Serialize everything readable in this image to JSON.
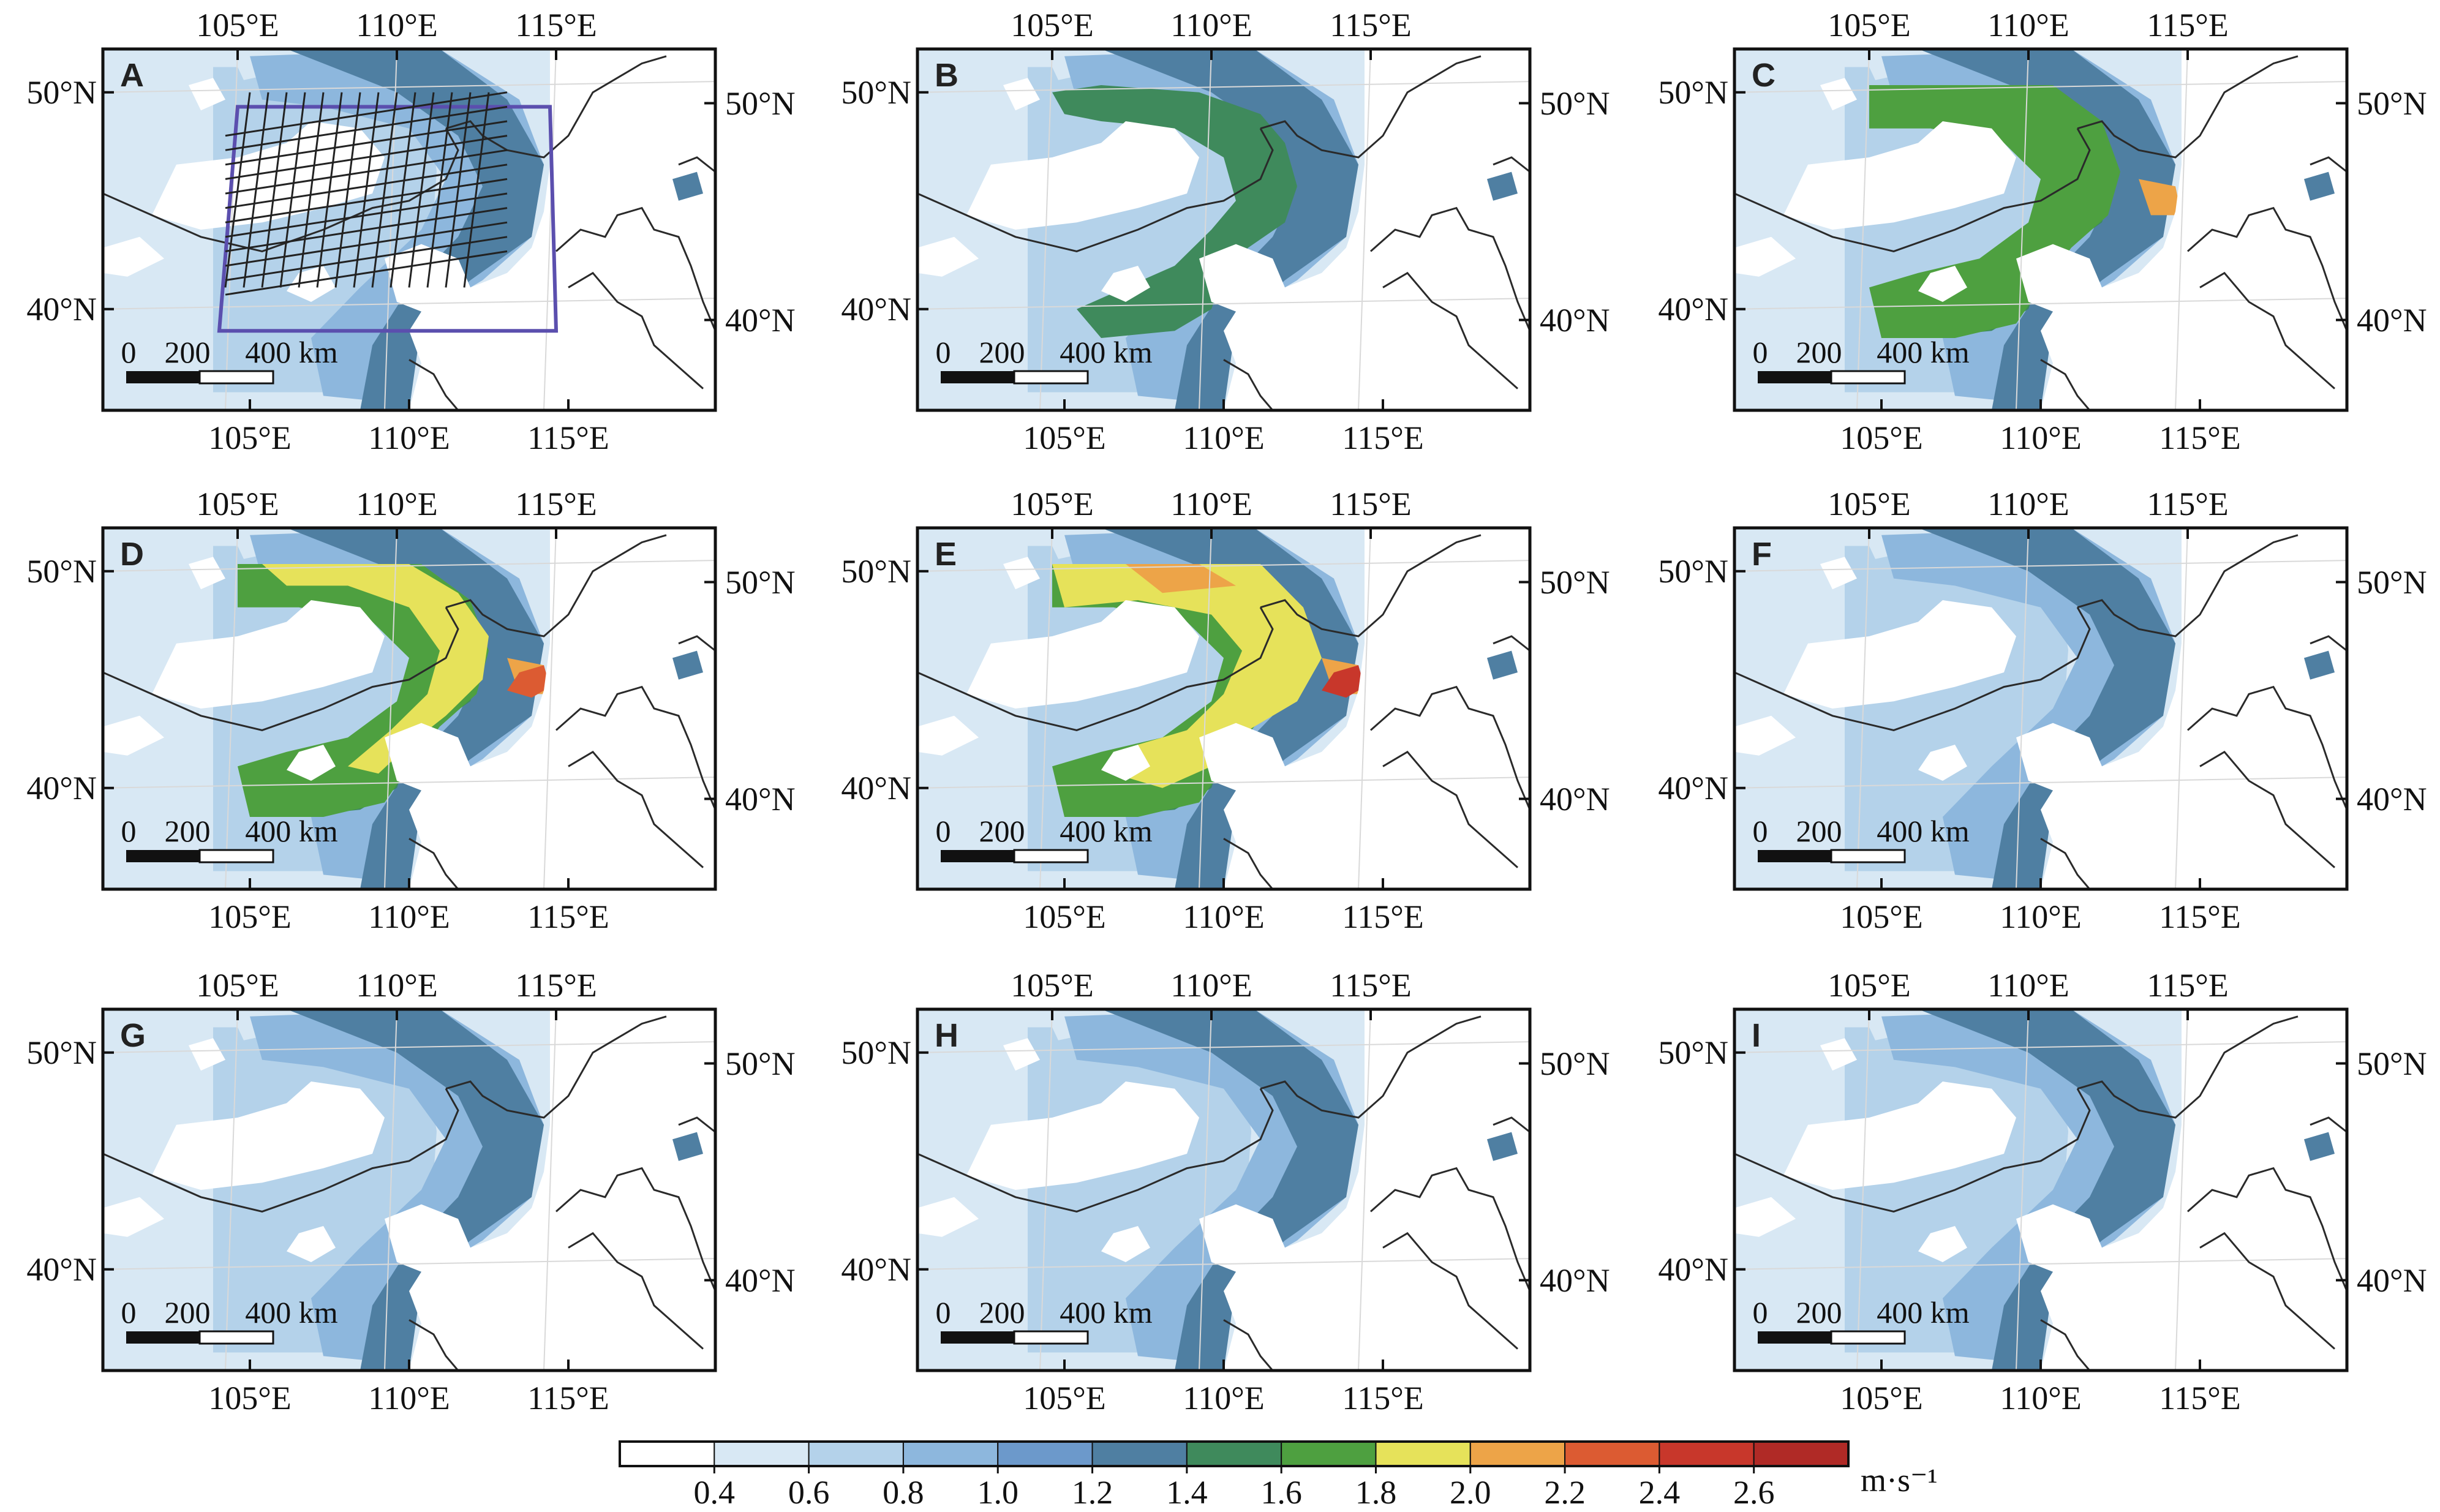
{
  "panels": [
    {
      "id": "A",
      "label": "A",
      "intensity": 0,
      "show_box": true,
      "show_hatch": true
    },
    {
      "id": "B",
      "label": "B",
      "intensity": 1,
      "show_box": false,
      "show_hatch": false
    },
    {
      "id": "C",
      "label": "C",
      "intensity": 2,
      "show_box": false,
      "show_hatch": false
    },
    {
      "id": "D",
      "label": "D",
      "intensity": 3,
      "show_box": false,
      "show_hatch": false
    },
    {
      "id": "E",
      "label": "E",
      "intensity": 4,
      "show_box": false,
      "show_hatch": false
    },
    {
      "id": "F",
      "label": "F",
      "intensity": 0,
      "show_box": false,
      "show_hatch": false
    },
    {
      "id": "G",
      "label": "G",
      "intensity": 0,
      "show_box": false,
      "show_hatch": false
    },
    {
      "id": "H",
      "label": "H",
      "intensity": 0,
      "show_box": false,
      "show_hatch": false
    },
    {
      "id": "I",
      "label": "I",
      "intensity": 0,
      "show_box": false,
      "show_hatch": false
    }
  ],
  "axis_labels": {
    "lon": [
      "105°E",
      "110°E",
      "115°E"
    ],
    "lat_left": [
      "50°N",
      "40°N"
    ],
    "lat_right": [
      "50°N",
      "40°N"
    ]
  },
  "scale_bar": {
    "labels": [
      "0",
      "200",
      "400 km"
    ]
  },
  "colorbar": {
    "ticks": [
      "0.4",
      "0.6",
      "0.8",
      "1.0",
      "1.2",
      "1.4",
      "1.6",
      "1.8",
      "2.0",
      "2.2",
      "2.4",
      "2.6"
    ],
    "unit": "m·s⁻¹",
    "colors": [
      "#ffffff",
      "#d8e8f4",
      "#b4d2ea",
      "#8db7dd",
      "#6c99cb",
      "#4f7fa2",
      "#3f8a5c",
      "#4ea040",
      "#e6e25a",
      "#eda448",
      "#dc5b32",
      "#c8372b",
      "#b02a26"
    ]
  },
  "map_colors": {
    "box": "#5b4fae",
    "border": "#2a2a2a",
    "hatch": "#222222"
  }
}
